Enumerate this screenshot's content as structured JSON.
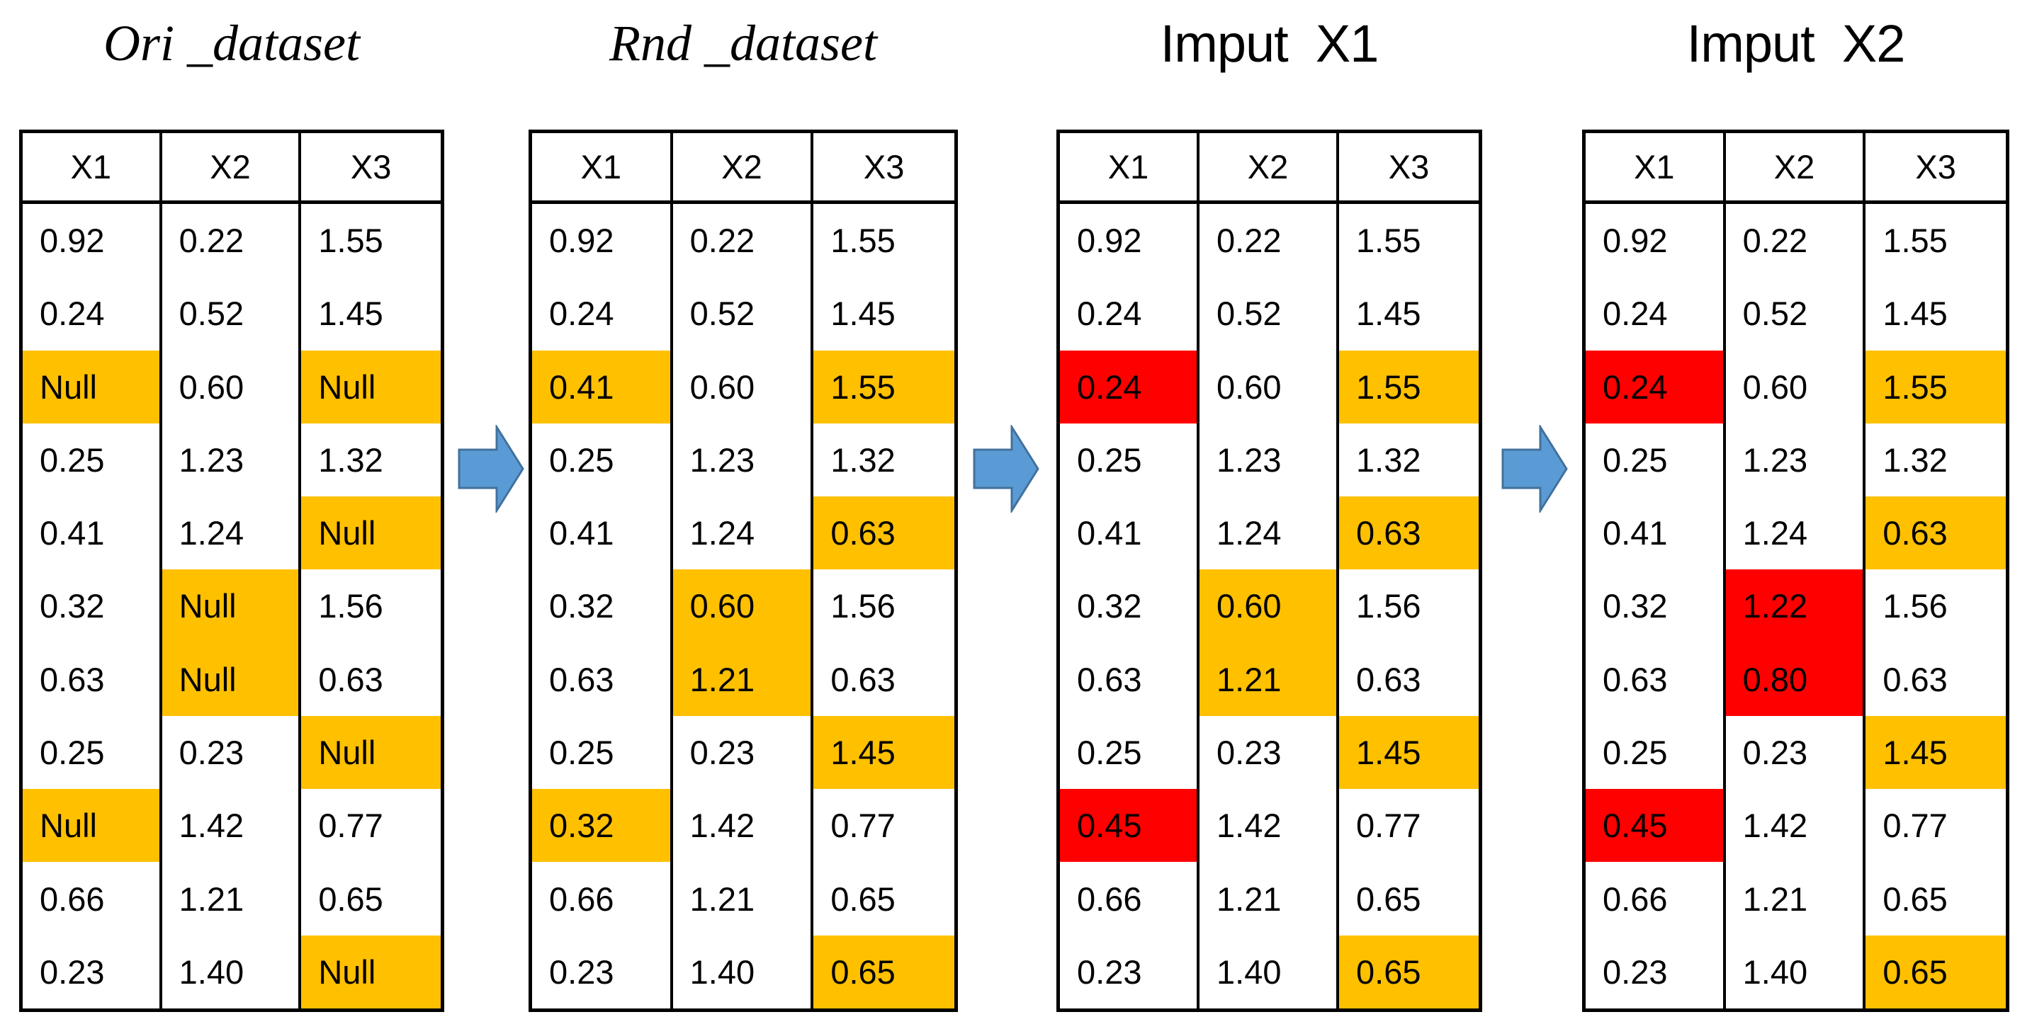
{
  "titles": [
    {
      "text": "Ori _dataset"
    },
    {
      "text": "Rnd _dataset"
    },
    {
      "text": "Imput  X1"
    },
    {
      "text": "Imput  X2"
    }
  ],
  "icons": {
    "arrow": "block-arrow-right-icon"
  },
  "colors": {
    "highlight_orange": "#FFC000",
    "highlight_red": "#FF0000",
    "arrow_fill": "#5B9BD5",
    "arrow_border": "#41719C",
    "table_border": "#000000",
    "background": "#FFFFFF"
  },
  "tables": [
    {
      "name": "ori_dataset",
      "headers": [
        "X1",
        "X2",
        "X3"
      ],
      "rows": [
        [
          "0.92",
          "0.22",
          "1.55"
        ],
        [
          "0.24",
          "0.52",
          "1.45"
        ],
        [
          "Null",
          "0.60",
          "Null"
        ],
        [
          "0.25",
          "1.23",
          "1.32"
        ],
        [
          "0.41",
          "1.24",
          "Null"
        ],
        [
          "0.32",
          "Null",
          "1.56"
        ],
        [
          "0.63",
          "Null",
          "0.63"
        ],
        [
          "0.25",
          "0.23",
          "Null"
        ],
        [
          "Null",
          "1.42",
          "0.77"
        ],
        [
          "0.66",
          "1.21",
          "0.65"
        ],
        [
          "0.23",
          "1.40",
          "Null"
        ]
      ],
      "highlights": [
        {
          "row": 2,
          "col": 0,
          "color": "orange"
        },
        {
          "row": 2,
          "col": 2,
          "color": "orange"
        },
        {
          "row": 4,
          "col": 2,
          "color": "orange"
        },
        {
          "row": 5,
          "col": 1,
          "color": "orange"
        },
        {
          "row": 6,
          "col": 1,
          "color": "orange"
        },
        {
          "row": 7,
          "col": 2,
          "color": "orange"
        },
        {
          "row": 8,
          "col": 0,
          "color": "orange"
        },
        {
          "row": 10,
          "col": 2,
          "color": "orange"
        }
      ]
    },
    {
      "name": "rnd_dataset",
      "headers": [
        "X1",
        "X2",
        "X3"
      ],
      "rows": [
        [
          "0.92",
          "0.22",
          "1.55"
        ],
        [
          "0.24",
          "0.52",
          "1.45"
        ],
        [
          "0.41",
          "0.60",
          "1.55"
        ],
        [
          "0.25",
          "1.23",
          "1.32"
        ],
        [
          "0.41",
          "1.24",
          "0.63"
        ],
        [
          "0.32",
          "0.60",
          "1.56"
        ],
        [
          "0.63",
          "1.21",
          "0.63"
        ],
        [
          "0.25",
          "0.23",
          "1.45"
        ],
        [
          "0.32",
          "1.42",
          "0.77"
        ],
        [
          "0.66",
          "1.21",
          "0.65"
        ],
        [
          "0.23",
          "1.40",
          "0.65"
        ]
      ],
      "highlights": [
        {
          "row": 2,
          "col": 0,
          "color": "orange"
        },
        {
          "row": 2,
          "col": 2,
          "color": "orange"
        },
        {
          "row": 4,
          "col": 2,
          "color": "orange"
        },
        {
          "row": 5,
          "col": 1,
          "color": "orange"
        },
        {
          "row": 6,
          "col": 1,
          "color": "orange"
        },
        {
          "row": 7,
          "col": 2,
          "color": "orange"
        },
        {
          "row": 8,
          "col": 0,
          "color": "orange"
        },
        {
          "row": 10,
          "col": 2,
          "color": "orange"
        }
      ]
    },
    {
      "name": "imput_x1",
      "headers": [
        "X1",
        "X2",
        "X3"
      ],
      "rows": [
        [
          "0.92",
          "0.22",
          "1.55"
        ],
        [
          "0.24",
          "0.52",
          "1.45"
        ],
        [
          "0.24",
          "0.60",
          "1.55"
        ],
        [
          "0.25",
          "1.23",
          "1.32"
        ],
        [
          "0.41",
          "1.24",
          "0.63"
        ],
        [
          "0.32",
          "0.60",
          "1.56"
        ],
        [
          "0.63",
          "1.21",
          "0.63"
        ],
        [
          "0.25",
          "0.23",
          "1.45"
        ],
        [
          "0.45",
          "1.42",
          "0.77"
        ],
        [
          "0.66",
          "1.21",
          "0.65"
        ],
        [
          "0.23",
          "1.40",
          "0.65"
        ]
      ],
      "highlights": [
        {
          "row": 2,
          "col": 0,
          "color": "red"
        },
        {
          "row": 2,
          "col": 2,
          "color": "orange"
        },
        {
          "row": 4,
          "col": 2,
          "color": "orange"
        },
        {
          "row": 5,
          "col": 1,
          "color": "orange"
        },
        {
          "row": 6,
          "col": 1,
          "color": "orange"
        },
        {
          "row": 7,
          "col": 2,
          "color": "orange"
        },
        {
          "row": 8,
          "col": 0,
          "color": "red"
        },
        {
          "row": 10,
          "col": 2,
          "color": "orange"
        }
      ]
    },
    {
      "name": "imput_x2",
      "headers": [
        "X1",
        "X2",
        "X3"
      ],
      "rows": [
        [
          "0.92",
          "0.22",
          "1.55"
        ],
        [
          "0.24",
          "0.52",
          "1.45"
        ],
        [
          "0.24",
          "0.60",
          "1.55"
        ],
        [
          "0.25",
          "1.23",
          "1.32"
        ],
        [
          "0.41",
          "1.24",
          "0.63"
        ],
        [
          "0.32",
          "1.22",
          "1.56"
        ],
        [
          "0.63",
          "0.80",
          "0.63"
        ],
        [
          "0.25",
          "0.23",
          "1.45"
        ],
        [
          "0.45",
          "1.42",
          "0.77"
        ],
        [
          "0.66",
          "1.21",
          "0.65"
        ],
        [
          "0.23",
          "1.40",
          "0.65"
        ]
      ],
      "highlights": [
        {
          "row": 2,
          "col": 0,
          "color": "red"
        },
        {
          "row": 2,
          "col": 2,
          "color": "orange"
        },
        {
          "row": 4,
          "col": 2,
          "color": "orange"
        },
        {
          "row": 5,
          "col": 1,
          "color": "red"
        },
        {
          "row": 6,
          "col": 1,
          "color": "red"
        },
        {
          "row": 7,
          "col": 2,
          "color": "orange"
        },
        {
          "row": 8,
          "col": 0,
          "color": "red"
        },
        {
          "row": 10,
          "col": 2,
          "color": "orange"
        }
      ]
    }
  ]
}
